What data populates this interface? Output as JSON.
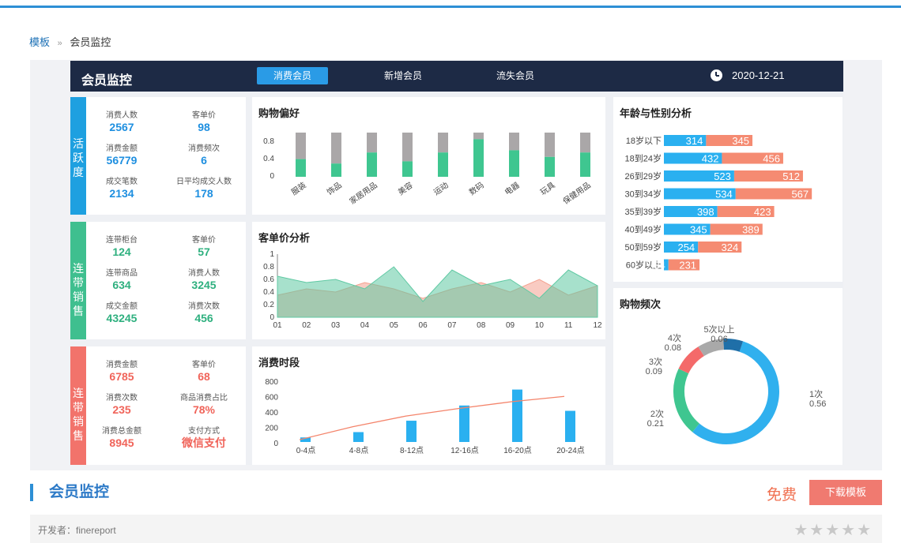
{
  "breadcrumb": {
    "root": "模板",
    "sep": "»",
    "current": "会员监控"
  },
  "dashboard": {
    "title": "会员监控",
    "tabs": [
      {
        "label": "消费会员",
        "active": true
      },
      {
        "label": "新增会员",
        "active": false
      },
      {
        "label": "流失会员",
        "active": false
      }
    ],
    "date": "2020-12-21"
  },
  "kpi_groups": [
    {
      "label": "活跃度",
      "color": "#1ea0e0",
      "value_color": "#1e8fe0",
      "items": [
        {
          "label": "消费人数",
          "value": "2567"
        },
        {
          "label": "客单价",
          "value": "98"
        },
        {
          "label": "消费金额",
          "value": "56779"
        },
        {
          "label": "消费频次",
          "value": "6"
        },
        {
          "label": "成交笔数",
          "value": "2134"
        },
        {
          "label": "日平均成交人数",
          "value": "178"
        }
      ]
    },
    {
      "label": "连带销售",
      "color": "#3fbf8f",
      "value_color": "#2fb07f",
      "items": [
        {
          "label": "连带柜台",
          "value": "124"
        },
        {
          "label": "客单价",
          "value": "57"
        },
        {
          "label": "连带商品",
          "value": "634"
        },
        {
          "label": "消费人数",
          "value": "3245"
        },
        {
          "label": "成交金额",
          "value": "43245"
        },
        {
          "label": "消费次数",
          "value": "456"
        }
      ]
    },
    {
      "label": "连带销售",
      "color": "#f2736b",
      "value_color": "#f0645a",
      "items": [
        {
          "label": "消费金额",
          "value": "6785"
        },
        {
          "label": "客单价",
          "value": "68"
        },
        {
          "label": "消费次数",
          "value": "235"
        },
        {
          "label": "商品消费占比",
          "value": "78%"
        },
        {
          "label": "消费总金额",
          "value": "8945"
        },
        {
          "label": "支付方式",
          "value": "微信支付"
        }
      ]
    }
  ],
  "chart_data": [
    {
      "type": "bar",
      "title": "购物偏好",
      "categories": [
        "服装",
        "饰品",
        "家居用品",
        "美容",
        "运动",
        "数码",
        "电器",
        "玩具",
        "保健用品"
      ],
      "series": [
        {
          "values": [
            0.4,
            0.3,
            0.55,
            0.35,
            0.55,
            0.85,
            0.6,
            0.45,
            0.55
          ]
        }
      ],
      "ylim": [
        0,
        1
      ],
      "yticks": [
        "0.8",
        "0.4",
        "0"
      ],
      "colors": [
        "#3fc690",
        "#aaa7a8"
      ]
    },
    {
      "type": "area",
      "title": "客单价分析",
      "categories": [
        "01",
        "02",
        "03",
        "04",
        "05",
        "06",
        "07",
        "08",
        "09",
        "10",
        "11",
        "12"
      ],
      "series": [
        {
          "values": [
            0.35,
            0.45,
            0.4,
            0.55,
            0.45,
            0.3,
            0.45,
            0.55,
            0.4,
            0.6,
            0.35,
            0.5
          ]
        },
        {
          "values": [
            0.65,
            0.55,
            0.6,
            0.45,
            0.8,
            0.25,
            0.75,
            0.5,
            0.6,
            0.3,
            0.75,
            0.5
          ]
        }
      ],
      "ylim": [
        0,
        1
      ],
      "yticks": [
        "1",
        "0.8",
        "0.6",
        "0.4",
        "0.2",
        "0"
      ],
      "colors": [
        "#f4a18f",
        "#5fc9a3"
      ]
    },
    {
      "type": "bar",
      "title": "消费时段",
      "categories": [
        "0-4点",
        "4-8点",
        "8-12点",
        "12-16点",
        "16-20点",
        "20-24点"
      ],
      "values": [
        60,
        130,
        280,
        480,
        690,
        410
      ],
      "line": [
        30,
        200,
        340,
        440,
        530,
        600
      ],
      "ylim": [
        0,
        800
      ],
      "yticks": [
        "800",
        "600",
        "400",
        "200",
        "0"
      ],
      "colors": [
        "#2ab0f0",
        "#f4846b"
      ]
    },
    {
      "type": "bar",
      "title": "年龄与性别分析",
      "categories": [
        "18岁以下",
        "18到24岁",
        "26到29岁",
        "30到34岁",
        "35到39岁",
        "40到49岁",
        "50到59岁",
        "60岁以上"
      ],
      "series": [
        {
          "values": [
            314,
            432,
            523,
            534,
            398,
            345,
            254,
            34
          ]
        },
        {
          "values": [
            345,
            456,
            512,
            567,
            423,
            389,
            324,
            231
          ]
        }
      ],
      "colors": [
        "#2ab0f0",
        "#f58b72"
      ]
    },
    {
      "type": "pie",
      "title": "购物频次",
      "slices": [
        {
          "label": "1次",
          "value": 0.56,
          "color": "#30b0ee"
        },
        {
          "label": "2次",
          "value": 0.21,
          "color": "#3fc690"
        },
        {
          "label": "3次",
          "value": 0.09,
          "color": "#f46a6a"
        },
        {
          "label": "4次",
          "value": 0.08,
          "color": "#a9a9a9"
        },
        {
          "label": "5次以上",
          "value": 0.06,
          "color": "#1f6fa8"
        }
      ]
    }
  ],
  "footer": {
    "title": "会员监控",
    "price": "免费",
    "download": "下载模板",
    "developer": "开发者：finereport",
    "stars": "★★★★★"
  }
}
